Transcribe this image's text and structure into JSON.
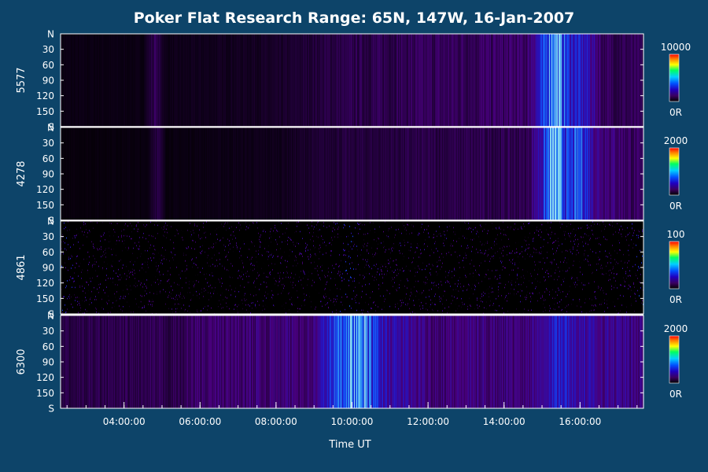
{
  "chart_data": {
    "type": "heatmap",
    "title": "Poker Flat Research Range: 65N, 147W, 16-Jan-2007",
    "xlabel": "Time UT",
    "x_range": [
      "02:20:00",
      "17:40:00"
    ],
    "x_ticks": [
      "04:00:00",
      "06:00:00",
      "08:00:00",
      "10:00:00",
      "12:00:00",
      "14:00:00",
      "16:00:00"
    ],
    "x_tick_hours": [
      4,
      6,
      8,
      10,
      12,
      14,
      16
    ],
    "x_range_hours": [
      2.33,
      17.67
    ],
    "y_ticks": [
      "N",
      "30",
      "60",
      "90",
      "120",
      "150",
      "S"
    ],
    "y_tick_values": [
      0,
      30,
      60,
      90,
      120,
      150,
      180
    ],
    "panels": [
      {
        "name": "5577",
        "colorbar_max": "10000",
        "colorbar_min": "0R",
        "activity": [
          {
            "t": 2.33,
            "level": 0.05
          },
          {
            "t": 4.5,
            "level": 0.05
          },
          {
            "t": 4.8,
            "level": 0.22
          },
          {
            "t": 5.1,
            "level": 0.06
          },
          {
            "t": 8.0,
            "level": 0.1
          },
          {
            "t": 9.5,
            "level": 0.18
          },
          {
            "t": 12.0,
            "level": 0.22
          },
          {
            "t": 14.6,
            "level": 0.25
          },
          {
            "t": 15.0,
            "level": 0.55
          },
          {
            "t": 15.3,
            "level": 0.95
          },
          {
            "t": 15.7,
            "level": 0.55
          },
          {
            "t": 16.2,
            "level": 0.45
          },
          {
            "t": 16.6,
            "level": 0.22
          },
          {
            "t": 17.67,
            "level": 0.2
          }
        ]
      },
      {
        "name": "4278",
        "colorbar_max": "2000",
        "colorbar_min": "0R",
        "activity": [
          {
            "t": 2.33,
            "level": 0.03
          },
          {
            "t": 4.6,
            "level": 0.04
          },
          {
            "t": 4.85,
            "level": 0.2
          },
          {
            "t": 5.1,
            "level": 0.04
          },
          {
            "t": 8.0,
            "level": 0.07
          },
          {
            "t": 9.5,
            "level": 0.15
          },
          {
            "t": 12.0,
            "level": 0.18
          },
          {
            "t": 14.6,
            "level": 0.2
          },
          {
            "t": 15.0,
            "level": 0.5
          },
          {
            "t": 15.3,
            "level": 0.95
          },
          {
            "t": 15.7,
            "level": 0.55
          },
          {
            "t": 16.0,
            "level": 0.7
          },
          {
            "t": 16.4,
            "level": 0.35
          },
          {
            "t": 17.67,
            "level": 0.2
          }
        ]
      },
      {
        "name": "4861",
        "colorbar_max": "100",
        "colorbar_min": "0R",
        "activity": [
          {
            "t": 2.33,
            "level": 0.55
          },
          {
            "t": 2.8,
            "level": 0.3
          },
          {
            "t": 5.0,
            "level": 0.28
          },
          {
            "t": 9.5,
            "level": 0.3
          },
          {
            "t": 9.9,
            "level": 0.55
          },
          {
            "t": 10.2,
            "level": 0.32
          },
          {
            "t": 17.2,
            "level": 0.3
          },
          {
            "t": 17.67,
            "level": 0.55
          }
        ]
      },
      {
        "name": "6300",
        "colorbar_max": "2000",
        "colorbar_min": "0R",
        "activity": [
          {
            "t": 2.33,
            "level": 0.18
          },
          {
            "t": 5.6,
            "level": 0.2
          },
          {
            "t": 5.7,
            "level": 0.25
          },
          {
            "t": 9.0,
            "level": 0.3
          },
          {
            "t": 9.4,
            "level": 0.55
          },
          {
            "t": 9.9,
            "level": 0.85
          },
          {
            "t": 10.3,
            "level": 0.8
          },
          {
            "t": 10.8,
            "level": 0.45
          },
          {
            "t": 12.0,
            "level": 0.3
          },
          {
            "t": 14.5,
            "level": 0.3
          },
          {
            "t": 15.0,
            "level": 0.4
          },
          {
            "t": 15.3,
            "level": 0.55
          },
          {
            "t": 16.0,
            "level": 0.4
          },
          {
            "t": 17.67,
            "level": 0.3
          }
        ]
      }
    ],
    "colorscale": [
      "#000000",
      "#3a0060",
      "#1f00c0",
      "#0050ff",
      "#00d0ff",
      "#00ff60",
      "#ffff00",
      "#ff8000",
      "#ff0000"
    ],
    "grid": false,
    "legend": "colorbars at right of each panel"
  }
}
